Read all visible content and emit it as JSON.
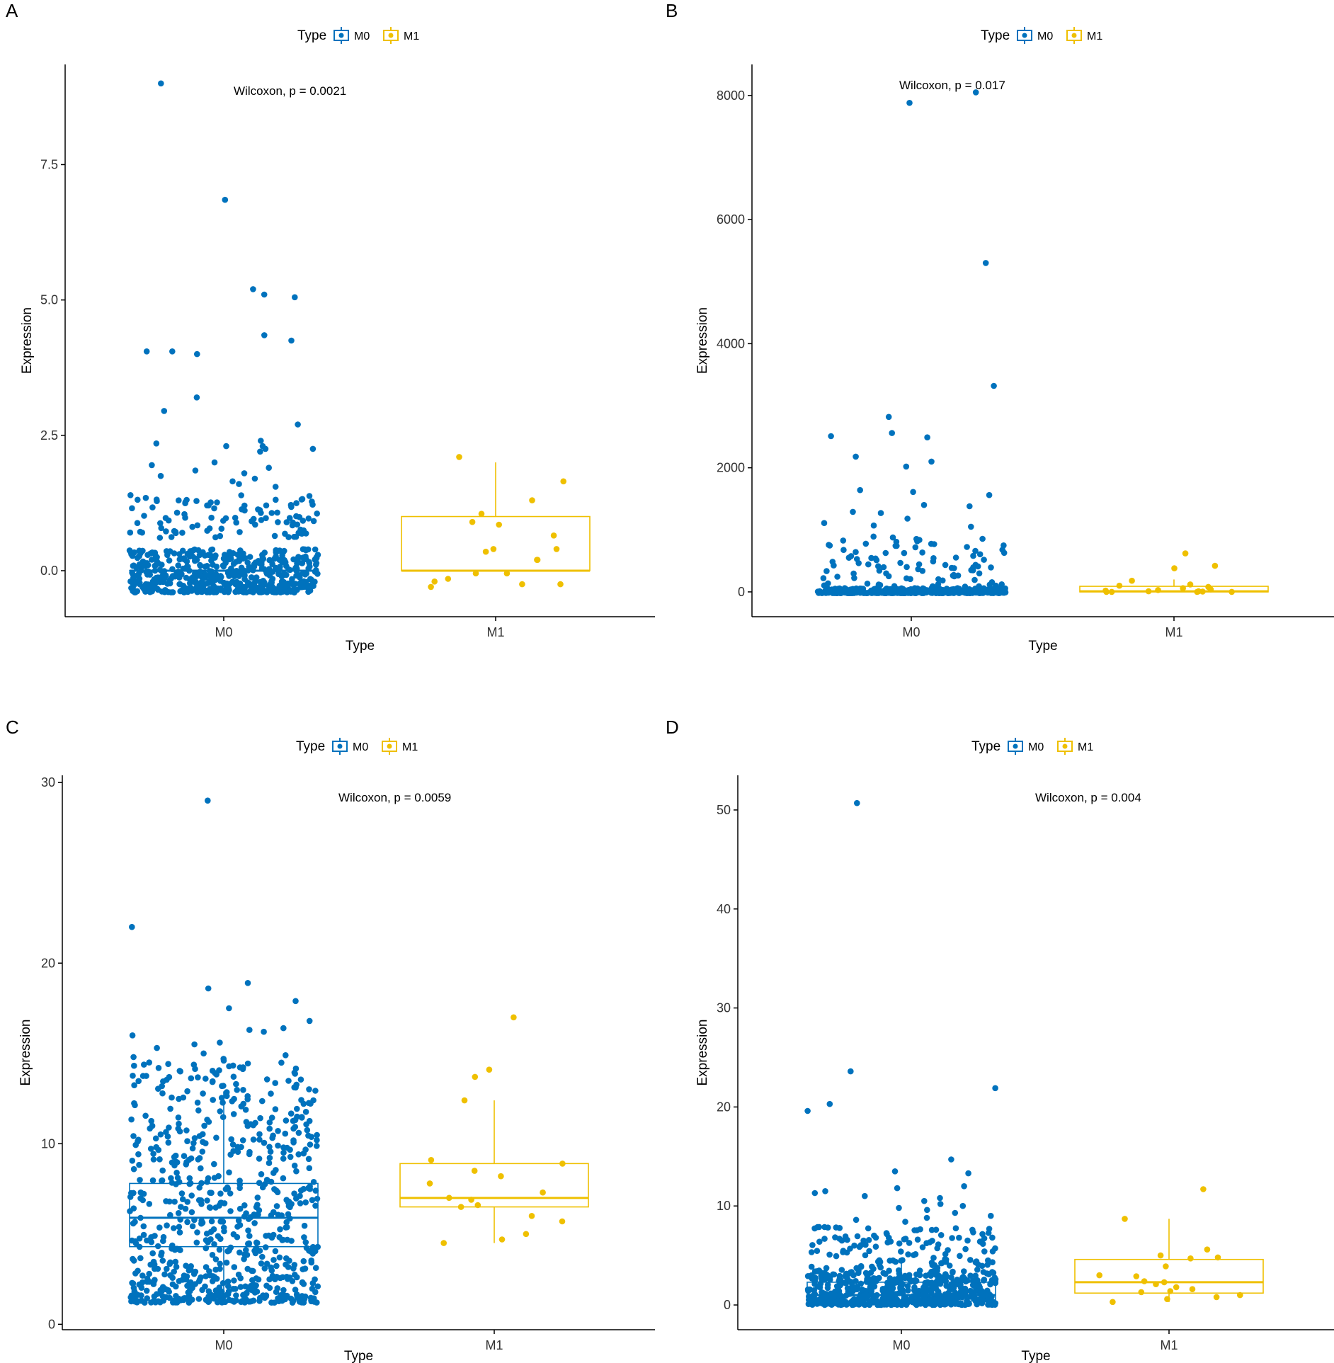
{
  "colors": {
    "M0": "#0072BD",
    "M1": "#EFC000",
    "axis": "#000000"
  },
  "chart_data": [
    {
      "type": "boxplot",
      "panel_label": "A",
      "legend": {
        "title": "Type",
        "entries": [
          "M0",
          "M1"
        ]
      },
      "annotation": "Wilcoxon, p = 0.0021",
      "xlabel": "Type",
      "ylabel": "Expression",
      "categories": [
        "M0",
        "M1"
      ],
      "ylim": [
        -0.85,
        9.35
      ],
      "yticks": [
        0.0,
        2.5,
        5.0,
        7.5
      ],
      "ytick_labels": [
        "0.0",
        "2.5",
        "5.0",
        "7.5"
      ],
      "boxes": [
        {
          "group": "M0",
          "min": 0,
          "q1": 0,
          "median": 0,
          "q3": 0,
          "max": 0
        },
        {
          "group": "M1",
          "min": 0,
          "q1": 0,
          "median": 0,
          "q3": 1.0,
          "max": 2.0
        }
      ],
      "points": {
        "M0": {
          "base_count": 520,
          "base_range": [
            -0.4,
            0.4
          ],
          "cluster_count": 95,
          "cluster_range": [
            0.6,
            1.4
          ],
          "outliers": [
            9.0,
            6.85,
            5.2,
            5.1,
            5.05,
            4.35,
            4.25,
            4.05,
            4.05,
            4.0,
            3.2,
            2.95,
            2.7,
            2.4,
            2.35,
            2.3,
            2.3,
            2.25,
            2.25,
            2.2,
            2.0,
            1.95,
            1.9,
            1.85,
            1.8,
            1.75,
            1.7,
            1.65,
            1.6,
            1.55
          ]
        },
        "M1": {
          "values": [
            2.1,
            1.65,
            1.3,
            1.05,
            0.9,
            0.85,
            0.65,
            0.4,
            0.4,
            0.35,
            0.2,
            0.2,
            -0.05,
            -0.05,
            -0.15,
            -0.2,
            -0.25,
            -0.25,
            -0.3
          ]
        }
      }
    },
    {
      "type": "boxplot",
      "panel_label": "B",
      "legend": {
        "title": "Type",
        "entries": [
          "M0",
          "M1"
        ]
      },
      "annotation": "Wilcoxon, p = 0.017",
      "xlabel": "Type",
      "ylabel": "Expression",
      "categories": [
        "M0",
        "M1"
      ],
      "ylim": [
        -400,
        8500
      ],
      "yticks": [
        0,
        2000,
        4000,
        6000,
        8000
      ],
      "ytick_labels": [
        "0",
        "2000",
        "4000",
        "6000",
        "8000"
      ],
      "boxes": [
        {
          "group": "M0",
          "min": 0,
          "q1": 0,
          "median": 0,
          "q3": 0,
          "max": 0
        },
        {
          "group": "M1",
          "min": 0,
          "q1": 0,
          "median": 10,
          "q3": 90,
          "max": 200
        }
      ],
      "points": {
        "M0": {
          "base_count": 420,
          "base_range": [
            -20,
            60
          ],
          "cluster_count": 90,
          "cluster_range": [
            80,
            900
          ],
          "outliers": [
            8050,
            7880,
            5300,
            3320,
            2820,
            2560,
            2510,
            2490,
            2180,
            2100,
            2020,
            1640,
            1610,
            1560,
            1400,
            1380,
            1290,
            1270,
            1180,
            1110,
            1070,
            1050
          ]
        },
        "M1": {
          "values": [
            620,
            420,
            380,
            180,
            120,
            100,
            80,
            60,
            40,
            30,
            20,
            10,
            10,
            5,
            0,
            0,
            0,
            0
          ]
        }
      }
    },
    {
      "type": "boxplot",
      "panel_label": "C",
      "legend": {
        "title": "Type",
        "entries": [
          "M0",
          "M1"
        ]
      },
      "annotation": "Wilcoxon, p = 0.0059",
      "xlabel": "Type",
      "ylabel": "Expression",
      "categories": [
        "M0",
        "M1"
      ],
      "ylim": [
        -0.3,
        30.4
      ],
      "yticks": [
        0,
        10,
        20,
        30
      ],
      "ytick_labels": [
        "0",
        "10",
        "20",
        "30"
      ],
      "boxes": [
        {
          "group": "M0",
          "min": 1.3,
          "q1": 4.3,
          "median": 5.9,
          "q3": 7.8,
          "max": 12.9
        },
        {
          "group": "M1",
          "min": 4.5,
          "q1": 6.5,
          "median": 7.0,
          "q3": 8.9,
          "max": 12.4
        }
      ],
      "points": {
        "M0": {
          "base_count": 640,
          "base_range": [
            1.2,
            11.5
          ],
          "cluster_count": 90,
          "cluster_range": [
            11.5,
            14.5
          ],
          "outliers": [
            29.0,
            22.0,
            18.9,
            18.6,
            17.9,
            17.5,
            16.8,
            16.4,
            16.3,
            16.2,
            16.0,
            15.6,
            15.5,
            15.3,
            15.0,
            14.9,
            14.8,
            14.7,
            14.6
          ]
        },
        "M1": {
          "values": [
            17.0,
            14.1,
            13.7,
            12.4,
            9.1,
            8.9,
            8.5,
            8.2,
            7.8,
            7.3,
            7.0,
            6.9,
            6.6,
            6.5,
            6.0,
            5.7,
            5.0,
            4.7,
            4.5
          ]
        }
      }
    },
    {
      "type": "boxplot",
      "panel_label": "D",
      "legend": {
        "title": "Type",
        "entries": [
          "M0",
          "M1"
        ]
      },
      "annotation": "Wilcoxon, p = 0.004",
      "xlabel": "Type",
      "ylabel": "Expression",
      "categories": [
        "M0",
        "M1"
      ],
      "ylim": [
        -2.5,
        53.5
      ],
      "yticks": [
        0,
        10,
        20,
        30,
        40,
        50
      ],
      "ytick_labels": [
        "0",
        "10",
        "20",
        "30",
        "40",
        "50"
      ],
      "boxes": [
        {
          "group": "M0",
          "min": 0,
          "q1": 0.4,
          "median": 1.0,
          "q3": 2.3,
          "max": 4.8
        },
        {
          "group": "M1",
          "min": 0.3,
          "q1": 1.2,
          "median": 2.3,
          "q3": 4.6,
          "max": 8.7
        }
      ],
      "points": {
        "M0": {
          "base_count": 560,
          "base_range": [
            0,
            3.5
          ],
          "cluster_count": 120,
          "cluster_range": [
            3.5,
            8.0
          ],
          "outliers": [
            50.7,
            23.6,
            21.9,
            20.3,
            19.6,
            14.7,
            13.5,
            13.3,
            12.0,
            11.8,
            11.5,
            11.3,
            11.0,
            10.8,
            10.5,
            10.2,
            10.0,
            9.8,
            9.6,
            9.3,
            9.0,
            8.8,
            8.6,
            8.4
          ]
        },
        "M1": {
          "values": [
            11.7,
            8.7,
            5.6,
            5.0,
            4.8,
            4.7,
            3.9,
            3.0,
            2.9,
            2.4,
            2.3,
            2.1,
            1.8,
            1.6,
            1.4,
            1.3,
            1.0,
            0.8,
            0.6,
            0.3
          ]
        }
      }
    }
  ]
}
